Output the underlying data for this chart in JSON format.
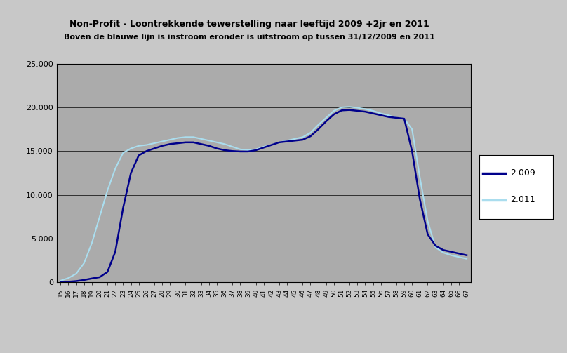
{
  "title": "Non-Profit - Loontrekkende tewerstelling naar leeftijd 2009 +2jr en 2011",
  "subtitle": "Boven de blauwe lijn is instroom eronder is uitstroom op tussen 31/12/2009 en 2011",
  "legend_2009": "2.009",
  "legend_2011": "2.011",
  "color_2009": "#00008B",
  "color_2011": "#AADDEE",
  "background_outer": "#C8C8C8",
  "background_plot": "#ABABAB",
  "ylim": [
    0,
    25000
  ],
  "yticks": [
    0,
    5000,
    10000,
    15000,
    20000,
    25000
  ],
  "ytick_labels": [
    "0",
    "5.000",
    "10.000",
    "15.000",
    "20.000",
    "25.000"
  ],
  "ages": [
    15,
    16,
    17,
    18,
    19,
    20,
    21,
    22,
    23,
    24,
    25,
    26,
    27,
    28,
    29,
    30,
    31,
    32,
    33,
    34,
    35,
    36,
    37,
    38,
    39,
    40,
    41,
    42,
    43,
    44,
    45,
    46,
    47,
    48,
    49,
    50,
    51,
    52,
    53,
    54,
    55,
    56,
    57,
    58,
    59,
    60,
    61,
    62,
    63,
    64,
    65,
    66,
    67
  ],
  "values_2009": [
    30,
    80,
    150,
    280,
    450,
    600,
    1200,
    3500,
    8500,
    12500,
    14500,
    15000,
    15300,
    15600,
    15800,
    15900,
    16000,
    16000,
    15800,
    15600,
    15300,
    15100,
    15000,
    14950,
    14950,
    15100,
    15400,
    15700,
    16000,
    16100,
    16200,
    16300,
    16700,
    17500,
    18400,
    19200,
    19650,
    19700,
    19600,
    19500,
    19300,
    19100,
    18900,
    18800,
    18700,
    15000,
    9500,
    5500,
    4200,
    3700,
    3500,
    3300,
    3100
  ],
  "values_2011": [
    200,
    500,
    1000,
    2200,
    4500,
    7500,
    10500,
    13000,
    14800,
    15300,
    15600,
    15700,
    15900,
    16100,
    16300,
    16500,
    16600,
    16600,
    16400,
    16200,
    16000,
    15800,
    15500,
    15200,
    15100,
    15200,
    15500,
    15700,
    16000,
    16200,
    16400,
    16600,
    17100,
    18000,
    18800,
    19600,
    20000,
    20050,
    19950,
    19800,
    19600,
    19300,
    19100,
    18800,
    18700,
    17500,
    12000,
    7000,
    4000,
    3400,
    3100,
    2900,
    2700
  ]
}
